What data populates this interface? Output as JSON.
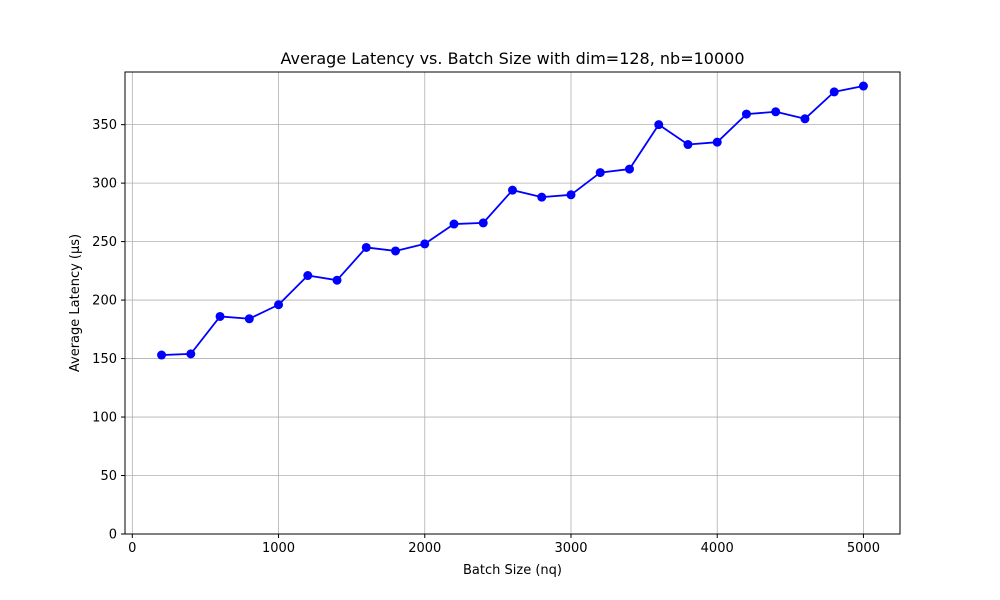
{
  "chart_data": {
    "type": "line",
    "title": "Average Latency vs. Batch Size with dim=128, nb=10000",
    "xlabel": "Batch Size (nq)",
    "ylabel": "Average Latency (µs)",
    "xlim": [
      -50,
      5250
    ],
    "ylim": [
      0,
      395
    ],
    "x_ticks": [
      0,
      1000,
      2000,
      3000,
      4000,
      5000
    ],
    "y_ticks": [
      0,
      50,
      100,
      150,
      200,
      250,
      300,
      350
    ],
    "grid": true,
    "line_color": "#0000ff",
    "marker": "circle",
    "series": [
      {
        "x": [
          200,
          400,
          600,
          800,
          1000,
          1200,
          1400,
          1600,
          1800,
          2000,
          2200,
          2400,
          2600,
          2800,
          3000,
          3200,
          3400,
          3600,
          3800,
          4000,
          4200,
          4400,
          4600,
          4800,
          5000
        ],
        "values": [
          153,
          154,
          186,
          184,
          196,
          221,
          217,
          245,
          242,
          248,
          265,
          266,
          294,
          288,
          290,
          309,
          312,
          350,
          333,
          335,
          359,
          361,
          355,
          378,
          383
        ]
      }
    ]
  }
}
